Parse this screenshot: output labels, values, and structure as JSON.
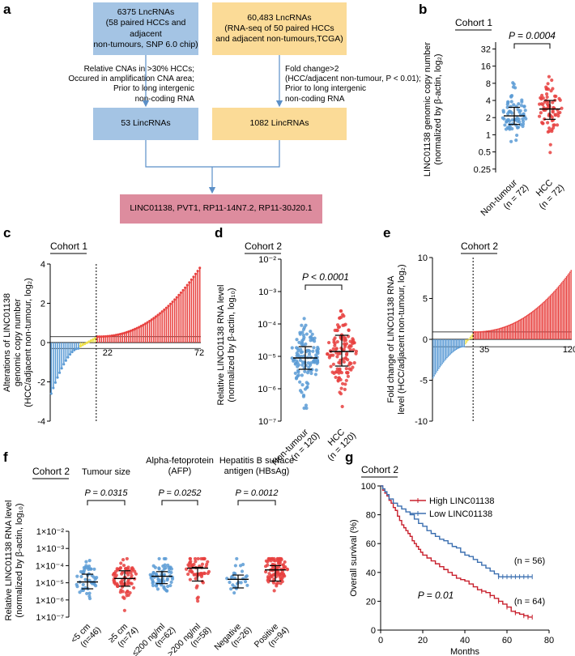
{
  "panels": {
    "a": "a",
    "b": "b",
    "c": "c",
    "d": "d",
    "e": "e",
    "f": "f",
    "g": "g"
  },
  "flow": {
    "box1": {
      "title": "6375 LncRNAs",
      "lines": [
        "(58 paired HCCs and adjacent",
        "non-tumours, SNP 6.0 chip)"
      ]
    },
    "box2": {
      "title": "60,483 LncRNAs",
      "lines": [
        "(RNA-seq of 50 paired HCCs",
        "and adjacent non-tumours,TCGA)"
      ]
    },
    "note1": [
      "Relative CNAs in >30% HCCs;",
      "Occured in amplification CNA area;",
      "Prior to long intergenic",
      "non-coding RNA"
    ],
    "note2": [
      "Fold change>2",
      "(HCC/adjacent non-tumour, P < 0.01);",
      "Prior to long intergenic",
      "non-coding RNA"
    ],
    "box3": "53 LincRNAs",
    "box4": "1082 LincRNAs",
    "box5": "LINC01138, PVT1, RP11-14N7.2, RP11-30J20.1"
  },
  "colors": {
    "blue": "#5b9bd5",
    "red": "#e8413f",
    "yellow": "#eee04a",
    "blueLight": "#a4c4e4",
    "yellowLight": "#fbdb97",
    "pink": "#dd8c9e",
    "survBlue": "#3b6fb0",
    "survRed": "#c8202d"
  },
  "chart_data": [
    {
      "panel": "b",
      "type": "scatter",
      "cohort": "Cohort 1",
      "pvalue": "P = 0.0004",
      "ylabel": [
        "LINC01138 genomic copy number",
        "(normalized by β-actin, log₂)"
      ],
      "yticks": [
        "32",
        "16",
        "8",
        "4",
        "2",
        "1",
        "0.5",
        "0.25"
      ],
      "ylim_log2": [
        -2.2,
        5.4
      ],
      "groups": [
        {
          "name": "Non-tumour",
          "n": "(n = 72)",
          "median_log2": 1.1,
          "q1_log2": 0.6,
          "q3_log2": 1.6,
          "color": "blue"
        },
        {
          "name": "HCC",
          "n": "(n = 72)",
          "median_log2": 1.5,
          "q1_log2": 0.9,
          "q3_log2": 2.0,
          "color": "red"
        }
      ]
    },
    {
      "panel": "c",
      "type": "bar",
      "cohort": "Cohort 1",
      "ylabel": [
        "Alterations of LINC01138",
        "genomic copy number",
        "(HCC/adjacent non-tumour, log₂)"
      ],
      "yticks": [
        "4",
        "2",
        "0",
        "-2",
        "-4"
      ],
      "ylim": [
        -4,
        4
      ],
      "n": 72,
      "split_low": 22,
      "split_label": "22",
      "end_label": "72",
      "n_blue": 14,
      "n_yellow": 8,
      "min": -2.6,
      "max": 3.8
    },
    {
      "panel": "d",
      "type": "scatter",
      "cohort": "Cohort 2",
      "pvalue": "P < 0.0001",
      "ylabel": [
        "Relative LINC01138 RNA level",
        "(normalized by β-actin, log₁₀)"
      ],
      "yticks": [
        "10⁻²",
        "10⁻³",
        "10⁻⁴",
        "10⁻⁵",
        "10⁻⁶",
        "10⁻⁷"
      ],
      "ylim_log10": [
        -7,
        -2
      ],
      "groups": [
        {
          "name": "Non-tumour",
          "n": "(n = 120)",
          "median": -5.05,
          "q1": -5.4,
          "q3": -4.7,
          "color": "blue"
        },
        {
          "name": "HCC",
          "n": "(n = 120)",
          "median": -4.85,
          "q1": -5.3,
          "q3": -4.35,
          "color": "red"
        }
      ]
    },
    {
      "panel": "e",
      "type": "bar",
      "cohort": "Cohort 2",
      "ylabel": [
        "Fold change of LINC01138 RNA",
        "level (HCC/adjacent non-tumour, log₂)"
      ],
      "yticks": [
        "10",
        "5",
        "0",
        "-5",
        "-10"
      ],
      "ylim": [
        -10,
        10
      ],
      "n": 120,
      "split_label": "35",
      "end_label": "120",
      "n_blue": 28,
      "n_yellow": 7,
      "min": -4.7,
      "max": 8.4
    },
    {
      "panel": "f",
      "type": "scatter",
      "cohort": "Cohort 2",
      "ylabel": [
        "Relative LINC01138 RNA level",
        "(normalized by β-actin, log₁₀)"
      ],
      "yticks": [
        "1×10⁻²",
        "1×10⁻³",
        "1×10⁻⁴",
        "1×10⁻⁵",
        "1×10⁻⁶",
        "1×10⁻⁷"
      ],
      "ylim_log10": [
        -7,
        -2
      ],
      "comparisons": [
        {
          "title": [
            "Tumour size"
          ],
          "pvalue": "P = 0.0315"
        },
        {
          "title": [
            "Alpha-fetoprotein",
            "(AFP)"
          ],
          "pvalue": "P = 0.0252"
        },
        {
          "title": [
            "Hepatitis B surface",
            "antigen (HBsAg)"
          ],
          "pvalue": "P = 0.0012"
        }
      ],
      "groups": [
        {
          "name": "<5 cm",
          "n": "(n=46)",
          "median": -4.95,
          "q1": -5.35,
          "q3": -4.5,
          "color": "blue"
        },
        {
          "name": "≥5 cm",
          "n": "(n=74)",
          "median": -4.75,
          "q1": -5.2,
          "q3": -4.3,
          "color": "red"
        },
        {
          "name": "≤200 ng/ml",
          "n": "(n=62)",
          "median": -4.62,
          "q1": -5.05,
          "q3": -4.35,
          "color": "blue"
        },
        {
          "name": ">200 ng/ml",
          "n": "(n=58)",
          "median": -4.15,
          "q1": -4.9,
          "q3": -4.1,
          "color": "red"
        },
        {
          "name": "Negative",
          "n": "(n=26)",
          "median": -4.8,
          "q1": -5.3,
          "q3": -4.55,
          "color": "blue"
        },
        {
          "name": "Positive",
          "n": "(n=94)",
          "median": -4.25,
          "q1": -4.9,
          "q3": -4.0,
          "color": "red"
        }
      ]
    },
    {
      "panel": "g",
      "type": "line",
      "cohort": "Cohort 2",
      "title": "Overall survival",
      "xlabel": "Months",
      "ylabel": "Overall survival (%)",
      "xlim": [
        0,
        80
      ],
      "ylim": [
        0,
        100
      ],
      "xticks": [
        "0",
        "20",
        "40",
        "60",
        "80"
      ],
      "yticks": [
        "0",
        "20",
        "40",
        "60",
        "80",
        "100"
      ],
      "pvalue": "P = 0.01",
      "series": [
        {
          "name": "High LINC01138",
          "n": "(n = 64)",
          "color": "survRed",
          "x": [
            0,
            1,
            2,
            3,
            4,
            5,
            6,
            7,
            8,
            9,
            10,
            11,
            12,
            13,
            14,
            15,
            16,
            17,
            18,
            19,
            20,
            22,
            24,
            26,
            28,
            30,
            32,
            34,
            36,
            38,
            40,
            42,
            44,
            46,
            48,
            50,
            52,
            54,
            56,
            58,
            60,
            62,
            64,
            66,
            68,
            70,
            72
          ],
          "y": [
            100,
            97,
            95,
            93,
            90,
            88,
            85,
            83,
            79,
            76,
            73,
            71,
            69,
            67,
            65,
            62,
            60,
            58,
            56,
            54,
            52,
            50,
            48,
            46,
            44,
            42,
            40,
            38,
            36,
            35,
            34,
            32,
            30,
            28,
            27,
            26,
            24,
            22,
            20,
            18,
            16,
            13,
            12,
            11,
            10,
            9,
            9
          ]
        },
        {
          "name": "Low LINC01138",
          "n": "(n = 56)",
          "color": "survBlue",
          "x": [
            0,
            1,
            2,
            3,
            4,
            6,
            8,
            10,
            12,
            14,
            16,
            18,
            20,
            22,
            24,
            26,
            28,
            30,
            32,
            34,
            36,
            38,
            40,
            42,
            44,
            46,
            48,
            50,
            52,
            54,
            56,
            60,
            64,
            68,
            72
          ],
          "y": [
            100,
            98,
            96,
            94,
            91,
            88,
            86,
            84,
            82,
            80,
            77,
            74,
            72,
            69,
            67,
            65,
            63,
            62,
            60,
            58,
            57,
            54,
            52,
            51,
            49,
            47,
            45,
            43,
            41,
            39,
            37,
            37,
            37,
            37,
            37
          ]
        }
      ]
    }
  ]
}
